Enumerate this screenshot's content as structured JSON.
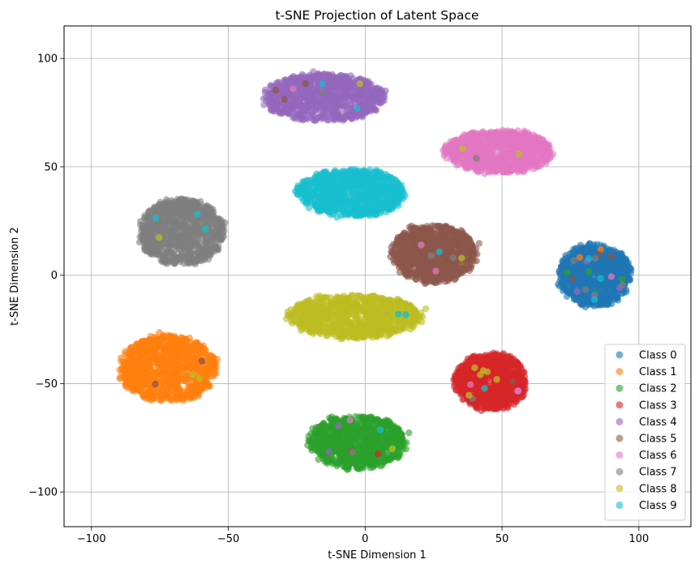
{
  "chart_data": {
    "type": "scatter",
    "title": "t-SNE Projection of Latent Space",
    "xlabel": "t-SNE Dimension 1",
    "ylabel": "t-SNE Dimension 2",
    "xlim": [
      -110,
      119
    ],
    "ylim": [
      -116,
      115
    ],
    "xticks": [
      -100,
      -50,
      0,
      50,
      100
    ],
    "yticks": [
      -100,
      -50,
      0,
      50,
      100
    ],
    "xtick_labels": [
      "−100",
      "−50",
      "0",
      "50",
      "100"
    ],
    "ytick_labels": [
      "−100",
      "−50",
      "0",
      "50",
      "100"
    ],
    "grid": true,
    "legend_position": "lower-right",
    "marker_alpha": 0.6,
    "series": [
      {
        "name": "Class 0",
        "color": "#1f77b4",
        "cluster": {
          "center": [
            84,
            0
          ],
          "spread": [
            12,
            13
          ]
        }
      },
      {
        "name": "Class 1",
        "color": "#ff7f0e",
        "cluster": {
          "center": [
            -72,
            -43
          ],
          "spread": [
            16,
            14
          ]
        }
      },
      {
        "name": "Class 2",
        "color": "#2ca02c",
        "cluster": {
          "center": [
            -3,
            -77
          ],
          "spread": [
            16,
            11
          ]
        }
      },
      {
        "name": "Class 3",
        "color": "#d62728",
        "cluster": {
          "center": [
            46,
            -49
          ],
          "spread": [
            12,
            12
          ]
        }
      },
      {
        "name": "Class 4",
        "color": "#9467bd",
        "cluster": {
          "center": [
            -15,
            82
          ],
          "spread": [
            20,
            10
          ]
        }
      },
      {
        "name": "Class 5",
        "color": "#8c564b",
        "cluster": {
          "center": [
            25,
            10
          ],
          "spread": [
            14,
            12
          ]
        }
      },
      {
        "name": "Class 6",
        "color": "#e377c2",
        "cluster": {
          "center": [
            49,
            57
          ],
          "spread": [
            18,
            9
          ]
        }
      },
      {
        "name": "Class 7",
        "color": "#7f7f7f",
        "cluster": {
          "center": [
            -67,
            20
          ],
          "spread": [
            14,
            14
          ]
        }
      },
      {
        "name": "Class 8",
        "color": "#bcbd22",
        "cluster": {
          "center": [
            -4,
            -19
          ],
          "spread": [
            22,
            9
          ]
        }
      },
      {
        "name": "Class 9",
        "color": "#17becf",
        "cluster": {
          "center": [
            -5,
            38
          ],
          "spread": [
            18,
            10
          ]
        }
      }
    ]
  }
}
